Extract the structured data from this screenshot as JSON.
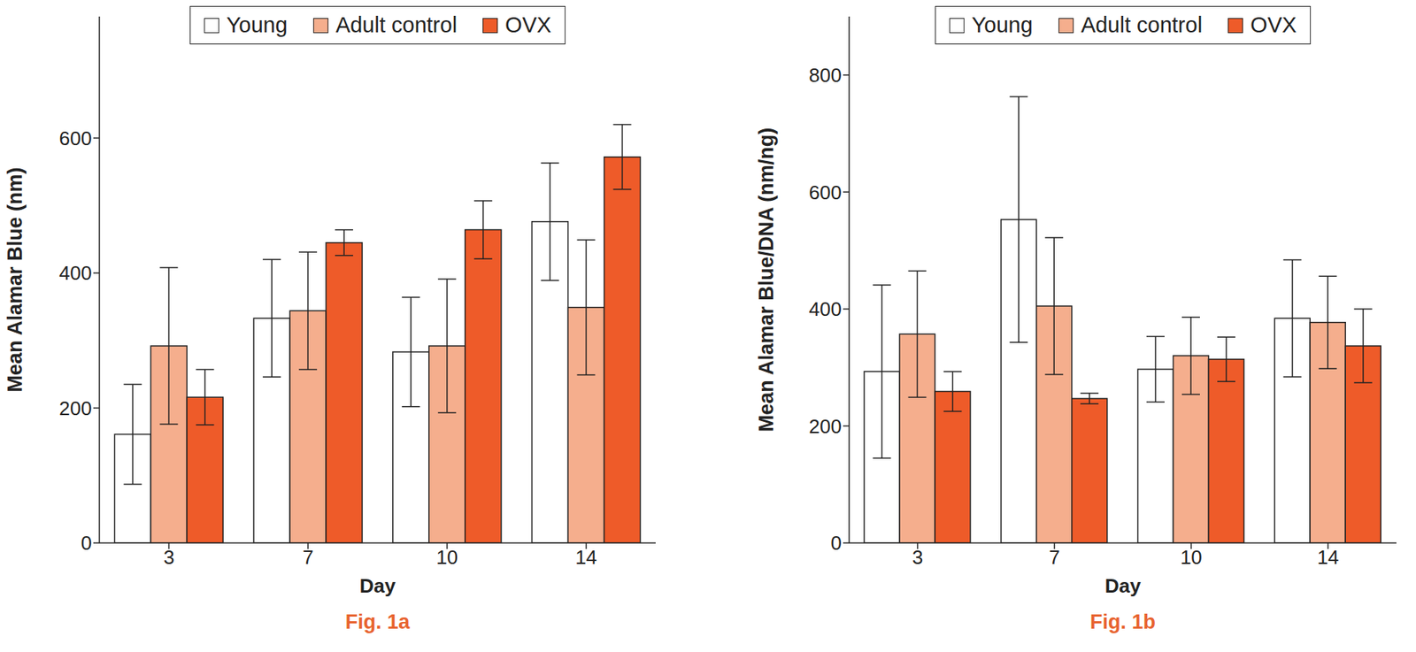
{
  "chart_data": [
    {
      "type": "bar",
      "title": "Fig. 1a",
      "x_label": "Day",
      "y_label": "Mean Alamar Blue (nm)",
      "categories": [
        "3",
        "7",
        "10",
        "14"
      ],
      "series": [
        {
          "name": "Young",
          "color": "#ffffff",
          "values": [
            161,
            333,
            283,
            476
          ],
          "errors": [
            74,
            87,
            81,
            87
          ]
        },
        {
          "name": "Adult control",
          "color": "#f5ae8d",
          "values": [
            292,
            344,
            292,
            349
          ],
          "errors": [
            116,
            87,
            99,
            100
          ]
        },
        {
          "name": "OVX",
          "color": "#ee5b29",
          "values": [
            216,
            445,
            464,
            572
          ],
          "errors": [
            41,
            19,
            43,
            48
          ]
        }
      ],
      "ylim": [
        0,
        780
      ],
      "yticks": [
        0,
        200,
        400,
        600
      ],
      "grid": false,
      "legend": "top"
    },
    {
      "type": "bar",
      "title": "Fig. 1b",
      "x_label": "Day",
      "y_label": "Mean Alamar Blue/DNA (nm/ng)",
      "categories": [
        "3",
        "7",
        "10",
        "14"
      ],
      "series": [
        {
          "name": "Young",
          "color": "#ffffff",
          "values": [
            293,
            553,
            297,
            384
          ],
          "errors": [
            148,
            210,
            56,
            100
          ]
        },
        {
          "name": "Adult control",
          "color": "#f5ae8d",
          "values": [
            357,
            405,
            320,
            377
          ],
          "errors": [
            108,
            117,
            66,
            79
          ]
        },
        {
          "name": "OVX",
          "color": "#ee5b29",
          "values": [
            259,
            247,
            314,
            337
          ],
          "errors": [
            34,
            9,
            38,
            63
          ]
        }
      ],
      "ylim": [
        0,
        900
      ],
      "yticks": [
        0,
        200,
        400,
        600,
        800
      ],
      "grid": false,
      "legend": "top"
    }
  ]
}
